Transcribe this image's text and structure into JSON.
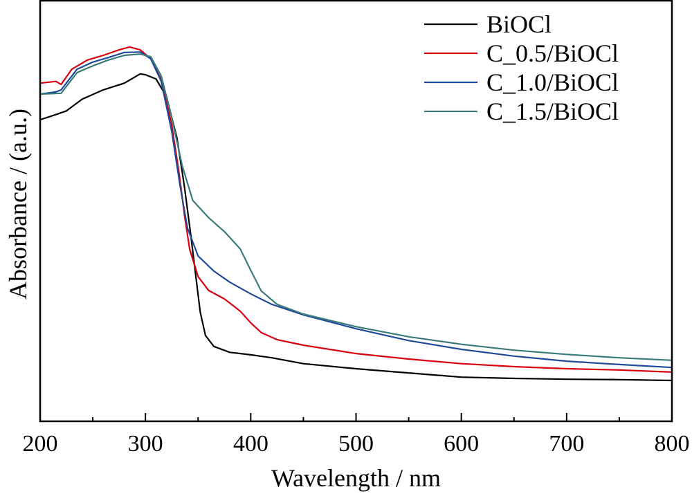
{
  "chart_data": {
    "type": "line",
    "title": "",
    "xlabel": "Wavelength / nm",
    "ylabel": "Absorbance / (a.u.)",
    "xlim": [
      200,
      800
    ],
    "ylim": [
      0,
      1
    ],
    "x_major_ticks": [
      200,
      300,
      400,
      500,
      600,
      700,
      800
    ],
    "x_tick_labels": [
      "200",
      "300",
      "400",
      "500",
      "600",
      "700",
      "800"
    ],
    "x_minor_ticks": [
      250,
      350,
      450,
      550,
      650,
      750
    ],
    "y_ticks": [],
    "grid": false,
    "legend_position": "top-right",
    "series": [
      {
        "name": "BiOCl",
        "color": "#000000",
        "x": [
          200,
          210,
          225,
          240,
          260,
          280,
          295,
          300,
          310,
          320,
          330,
          337,
          343,
          348,
          352,
          357,
          365,
          380,
          400,
          420,
          450,
          500,
          550,
          600,
          650,
          700,
          750,
          800
        ],
        "y": [
          0.717,
          0.725,
          0.738,
          0.766,
          0.788,
          0.804,
          0.826,
          0.824,
          0.814,
          0.772,
          0.673,
          0.558,
          0.444,
          0.342,
          0.26,
          0.204,
          0.178,
          0.164,
          0.158,
          0.151,
          0.137,
          0.125,
          0.115,
          0.105,
          0.102,
          0.1,
          0.099,
          0.097
        ]
      },
      {
        "name": "C_0.5/BiOCl",
        "color": "#d7000f",
        "x": [
          200,
          215,
          220,
          230,
          245,
          260,
          275,
          285,
          295,
          305,
          315,
          325,
          332,
          337,
          342,
          350,
          360,
          375,
          390,
          400,
          410,
          425,
          450,
          500,
          550,
          600,
          650,
          700,
          750,
          800
        ],
        "y": [
          0.804,
          0.808,
          0.801,
          0.837,
          0.859,
          0.87,
          0.883,
          0.89,
          0.883,
          0.862,
          0.812,
          0.704,
          0.589,
          0.491,
          0.409,
          0.344,
          0.311,
          0.291,
          0.262,
          0.234,
          0.211,
          0.194,
          0.181,
          0.161,
          0.148,
          0.137,
          0.13,
          0.125,
          0.122,
          0.117
        ]
      },
      {
        "name": "C_1.0/BiOCl",
        "color": "#1f4a9c",
        "x": [
          200,
          215,
          220,
          235,
          250,
          265,
          280,
          295,
          305,
          315,
          325,
          333,
          340,
          350,
          365,
          380,
          400,
          420,
          450,
          500,
          550,
          600,
          650,
          700,
          750,
          800
        ],
        "y": [
          0.778,
          0.783,
          0.788,
          0.837,
          0.854,
          0.865,
          0.877,
          0.878,
          0.862,
          0.808,
          0.689,
          0.558,
          0.459,
          0.393,
          0.357,
          0.331,
          0.303,
          0.278,
          0.253,
          0.22,
          0.192,
          0.171,
          0.155,
          0.143,
          0.135,
          0.128
        ]
      },
      {
        "name": "C_1.5/BiOCl",
        "color": "#3a7a7a",
        "x": [
          200,
          220,
          235,
          250,
          265,
          280,
          295,
          305,
          315,
          325,
          335,
          345,
          360,
          375,
          390,
          400,
          410,
          425,
          450,
          500,
          550,
          600,
          650,
          700,
          750,
          800
        ],
        "y": [
          0.778,
          0.78,
          0.829,
          0.845,
          0.859,
          0.87,
          0.873,
          0.867,
          0.821,
          0.722,
          0.607,
          0.525,
          0.484,
          0.451,
          0.41,
          0.359,
          0.31,
          0.278,
          0.255,
          0.225,
          0.201,
          0.183,
          0.169,
          0.159,
          0.151,
          0.145
        ]
      }
    ]
  }
}
